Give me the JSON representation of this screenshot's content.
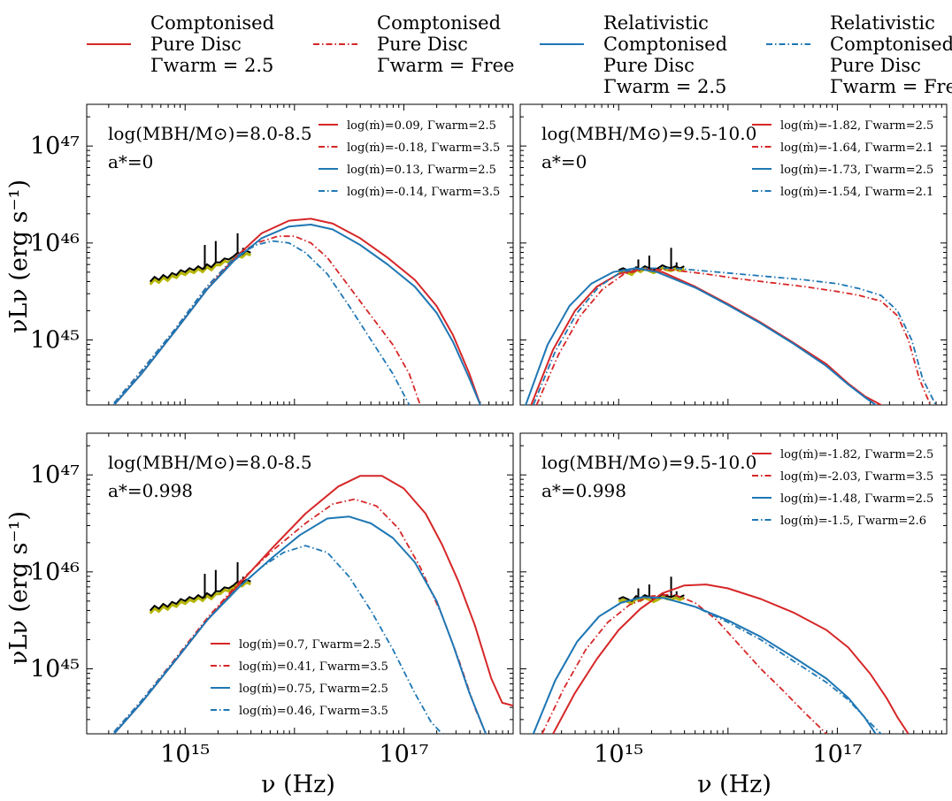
{
  "figure": {
    "xlabel": "ν (Hz)",
    "ylabel": "νLν (erg s⁻¹)",
    "x_tick_labels": [
      "10¹⁵",
      "10¹⁷"
    ],
    "y_tick_labels": [
      "10⁴⁷",
      "10⁴⁶",
      "10⁴⁵"
    ]
  },
  "legend": [
    {
      "lines": [
        "Comptonised",
        "Pure Disc",
        "Γwarm = 2.5"
      ],
      "color": "#d62728",
      "dash": "solid"
    },
    {
      "lines": [
        "Comptonised",
        "Pure Disc",
        "Γwarm = Free"
      ],
      "color": "#d62728",
      "dash": "dashdot"
    },
    {
      "lines": [
        "Relativistic",
        "Comptonised",
        "Pure Disc",
        "Γwarm = 2.5"
      ],
      "color": "#1f77b4",
      "dash": "solid"
    },
    {
      "lines": [
        "Relativistic",
        "Comptonised",
        "Pure Disc",
        "Γwarm = Free"
      ],
      "color": "#1f77b4",
      "dash": "dashdot"
    }
  ],
  "chart_data": [
    {
      "type": "line",
      "title": "log(MBH/M⊙)=8.0-8.5",
      "subtitle": "a*=0",
      "xscale": "log",
      "yscale": "log",
      "xlim": [
        14.1,
        18.0
      ],
      "ylim": [
        44.33,
        47.43
      ],
      "legend_position": "top-right",
      "legend_entries": [
        "log(ṁ)=0.09, Γwarm=2.5",
        "log(ṁ)=-0.18, Γwarm=3.5",
        "log(ṁ)=0.13, Γwarm=2.5",
        "log(ṁ)=-0.14, Γwarm=3.5"
      ],
      "series": [
        {
          "name": "log(ṁ)=0.09, Γwarm=2.5",
          "color": "#d62728",
          "dash": "solid",
          "log_nu": [
            14.35,
            14.6,
            14.9,
            15.2,
            15.45,
            15.7,
            15.95,
            16.15,
            16.35,
            16.6,
            16.85,
            17.1,
            17.3,
            17.45,
            17.6,
            17.7,
            17.85
          ],
          "log_L": [
            44.33,
            44.65,
            45.08,
            45.52,
            45.84,
            46.1,
            46.23,
            46.25,
            46.2,
            46.05,
            45.85,
            45.62,
            45.35,
            45.05,
            44.65,
            44.33,
            44.0
          ]
        },
        {
          "name": "log(ṁ)=-0.18, Γwarm=3.5",
          "color": "#d62728",
          "dash": "dashdot",
          "log_nu": [
            14.35,
            14.6,
            14.9,
            15.2,
            15.45,
            15.65,
            15.85,
            16.0,
            16.15,
            16.3,
            16.5,
            16.7,
            16.9,
            17.05,
            17.15,
            17.3
          ],
          "log_L": [
            44.35,
            44.68,
            45.1,
            45.55,
            45.85,
            46.0,
            46.07,
            46.07,
            46.0,
            45.85,
            45.55,
            45.25,
            44.95,
            44.65,
            44.33,
            44.0
          ]
        },
        {
          "name": "log(ṁ)=0.13, Γwarm=2.5",
          "color": "#1f77b4",
          "dash": "solid",
          "log_nu": [
            14.35,
            14.6,
            14.9,
            15.2,
            15.45,
            15.7,
            15.95,
            16.15,
            16.35,
            16.6,
            16.85,
            17.1,
            17.3,
            17.45,
            17.6,
            17.7,
            17.85
          ],
          "log_L": [
            44.33,
            44.65,
            45.08,
            45.52,
            45.82,
            46.05,
            46.17,
            46.19,
            46.14,
            45.98,
            45.78,
            45.55,
            45.28,
            44.98,
            44.6,
            44.33,
            44.0
          ]
        },
        {
          "name": "log(ṁ)=-0.14, Γwarm=3.5",
          "color": "#1f77b4",
          "dash": "dashdot",
          "log_nu": [
            14.35,
            14.6,
            14.9,
            15.2,
            15.45,
            15.65,
            15.8,
            15.95,
            16.1,
            16.3,
            16.5,
            16.7,
            16.9,
            17.05,
            17.2
          ],
          "log_L": [
            44.35,
            44.68,
            45.1,
            45.55,
            45.85,
            45.98,
            46.02,
            46.0,
            45.9,
            45.68,
            45.35,
            45.0,
            44.65,
            44.33,
            44.0
          ]
        }
      ]
    },
    {
      "type": "line",
      "title": "log(MBH/M⊙)=9.5-10.0",
      "subtitle": "a*=0",
      "xscale": "log",
      "yscale": "log",
      "xlim": [
        14.1,
        18.0
      ],
      "ylim": [
        44.33,
        47.43
      ],
      "legend_position": "top-right",
      "legend_entries": [
        "log(ṁ)=-1.82, Γwarm=2.5",
        "log(ṁ)=-1.64, Γwarm=2.1",
        "log(ṁ)=-1.73, Γwarm=2.5",
        "log(ṁ)=-1.54, Γwarm=2.1"
      ],
      "series": [
        {
          "name": "log(ṁ)=-1.82, Γwarm=2.5",
          "color": "#d62728",
          "dash": "solid",
          "log_nu": [
            14.2,
            14.4,
            14.6,
            14.8,
            15.0,
            15.2,
            15.4,
            15.7,
            16.0,
            16.3,
            16.6,
            16.9,
            17.1,
            17.25,
            17.4,
            17.5
          ],
          "log_L": [
            44.33,
            44.9,
            45.3,
            45.55,
            45.68,
            45.73,
            45.7,
            45.55,
            45.37,
            45.18,
            44.97,
            44.75,
            44.55,
            44.42,
            44.33,
            44.2
          ]
        },
        {
          "name": "log(ṁ)=-1.64, Γwarm=2.1",
          "color": "#d62728",
          "dash": "dashdot",
          "log_nu": [
            14.25,
            14.45,
            14.65,
            14.85,
            15.05,
            15.25,
            15.5,
            15.8,
            16.1,
            16.4,
            16.7,
            17.0,
            17.2,
            17.4,
            17.55,
            17.65,
            17.75,
            17.85
          ],
          "log_L": [
            44.33,
            44.85,
            45.25,
            45.52,
            45.68,
            45.73,
            45.72,
            45.68,
            45.63,
            45.59,
            45.55,
            45.5,
            45.46,
            45.4,
            45.25,
            45.0,
            44.6,
            44.33
          ]
        },
        {
          "name": "log(ṁ)=-1.73, Γwarm=2.5",
          "color": "#1f77b4",
          "dash": "solid",
          "log_nu": [
            14.15,
            14.35,
            14.55,
            14.75,
            14.95,
            15.15,
            15.35,
            15.7,
            16.0,
            16.3,
            16.6,
            16.9,
            17.1,
            17.25,
            17.35,
            17.45
          ],
          "log_L": [
            44.33,
            44.95,
            45.35,
            45.58,
            45.7,
            45.74,
            45.7,
            45.54,
            45.36,
            45.17,
            44.96,
            44.73,
            44.54,
            44.41,
            44.33,
            44.2
          ]
        },
        {
          "name": "log(ṁ)=-1.54, Γwarm=2.1",
          "color": "#1f77b4",
          "dash": "dashdot",
          "log_nu": [
            14.22,
            14.42,
            14.62,
            14.82,
            15.02,
            15.22,
            15.5,
            15.8,
            16.1,
            16.4,
            16.7,
            17.0,
            17.2,
            17.4,
            17.55,
            17.68,
            17.78,
            17.9
          ],
          "log_L": [
            44.33,
            44.88,
            45.28,
            45.55,
            45.7,
            45.74,
            45.74,
            45.71,
            45.68,
            45.65,
            45.62,
            45.58,
            45.53,
            45.46,
            45.3,
            45.0,
            44.6,
            44.33
          ]
        }
      ]
    },
    {
      "type": "line",
      "title": "log(MBH/M⊙)=8.0-8.5",
      "subtitle": "a*=0.998",
      "xscale": "log",
      "yscale": "log",
      "xlim": [
        14.1,
        18.0
      ],
      "ylim": [
        44.33,
        47.43
      ],
      "legend_position": "bottom-center",
      "legend_entries": [
        "log(ṁ)=0.7, Γwarm=2.5",
        "log(ṁ)=0.41, Γwarm=3.5",
        "log(ṁ)=0.75, Γwarm=2.5",
        "log(ṁ)=0.46, Γwarm=3.5"
      ],
      "series": [
        {
          "name": "log(ṁ)=0.7, Γwarm=2.5",
          "color": "#d62728",
          "dash": "solid",
          "log_nu": [
            14.35,
            14.6,
            14.9,
            15.2,
            15.5,
            15.8,
            16.1,
            16.4,
            16.6,
            16.8,
            17.0,
            17.2,
            17.35,
            17.5,
            17.65,
            17.8,
            17.9,
            18.0
          ],
          "log_L": [
            44.33,
            44.65,
            45.07,
            45.5,
            45.88,
            46.25,
            46.6,
            46.88,
            46.99,
            46.99,
            46.86,
            46.6,
            46.28,
            45.9,
            45.45,
            44.9,
            44.65,
            44.62
          ]
        },
        {
          "name": "log(ṁ)=0.41, Γwarm=3.5",
          "color": "#d62728",
          "dash": "dashdot",
          "log_nu": [
            14.35,
            14.6,
            14.9,
            15.2,
            15.5,
            15.8,
            16.1,
            16.35,
            16.55,
            16.75,
            16.95,
            17.15,
            17.35,
            17.5,
            17.65,
            17.75
          ],
          "log_L": [
            44.35,
            44.67,
            45.09,
            45.52,
            45.9,
            46.22,
            46.5,
            46.7,
            46.75,
            46.68,
            46.45,
            46.05,
            45.55,
            45.1,
            44.6,
            44.33
          ]
        },
        {
          "name": "log(ṁ)=0.75, Γwarm=2.5",
          "color": "#1f77b4",
          "dash": "solid",
          "log_nu": [
            14.35,
            14.6,
            14.9,
            15.2,
            15.5,
            15.8,
            16.05,
            16.3,
            16.5,
            16.7,
            16.9,
            17.1,
            17.3,
            17.45,
            17.6,
            17.75
          ],
          "log_L": [
            44.33,
            44.65,
            45.07,
            45.5,
            45.85,
            46.15,
            46.38,
            46.55,
            46.57,
            46.5,
            46.35,
            46.1,
            45.7,
            45.25,
            44.75,
            44.33
          ]
        },
        {
          "name": "log(ṁ)=0.46, Γwarm=3.5",
          "color": "#1f77b4",
          "dash": "dashdot",
          "log_nu": [
            14.35,
            14.6,
            14.9,
            15.2,
            15.45,
            15.7,
            15.9,
            16.1,
            16.3,
            16.5,
            16.7,
            16.9,
            17.1,
            17.25,
            17.35
          ],
          "log_L": [
            44.35,
            44.67,
            45.08,
            45.5,
            45.8,
            46.05,
            46.2,
            46.27,
            46.2,
            45.95,
            45.6,
            45.2,
            44.75,
            44.45,
            44.33
          ]
        }
      ]
    },
    {
      "type": "line",
      "title": "log(MBH/M⊙)=9.5-10.0",
      "subtitle": "a*=0.998",
      "xscale": "log",
      "yscale": "log",
      "xlim": [
        14.1,
        18.0
      ],
      "ylim": [
        44.33,
        47.43
      ],
      "legend_position": "top-right",
      "legend_entries": [
        "log(ṁ)=-1.82, Γwarm=2.5",
        "log(ṁ)=-2.03, Γwarm=3.5",
        "log(ṁ)=-1.48, Γwarm=2.5",
        "log(ṁ)=-1.5, Γwarm=2.6"
      ],
      "series": [
        {
          "name": "log(ṁ)=-1.82, Γwarm=2.5",
          "color": "#d62728",
          "dash": "solid",
          "log_nu": [
            14.4,
            14.6,
            14.8,
            15.0,
            15.2,
            15.4,
            15.6,
            15.8,
            16.0,
            16.3,
            16.6,
            16.9,
            17.1,
            17.3,
            17.45,
            17.55,
            17.65
          ],
          "log_L": [
            44.33,
            44.75,
            45.1,
            45.4,
            45.62,
            45.78,
            45.86,
            45.87,
            45.83,
            45.72,
            45.58,
            45.4,
            45.22,
            44.95,
            44.7,
            44.5,
            44.33
          ]
        },
        {
          "name": "log(ṁ)=-2.03, Γwarm=3.5",
          "color": "#d62728",
          "dash": "dashdot",
          "log_nu": [
            14.3,
            14.5,
            14.7,
            14.9,
            15.1,
            15.3,
            15.5,
            15.7,
            15.9,
            16.1,
            16.3,
            16.5,
            16.7,
            16.9,
            17.0
          ],
          "log_L": [
            44.33,
            44.8,
            45.2,
            45.48,
            45.66,
            45.75,
            45.77,
            45.68,
            45.5,
            45.25,
            45.0,
            44.78,
            44.55,
            44.33,
            44.2
          ]
        },
        {
          "name": "log(ṁ)=-1.48, Γwarm=2.5",
          "color": "#1f77b4",
          "dash": "solid",
          "log_nu": [
            14.22,
            14.42,
            14.62,
            14.82,
            15.02,
            15.22,
            15.42,
            15.7,
            16.0,
            16.3,
            16.6,
            16.9,
            17.1,
            17.25,
            17.35,
            17.45
          ],
          "log_L": [
            44.33,
            44.88,
            45.28,
            45.54,
            45.68,
            45.74,
            45.73,
            45.64,
            45.5,
            45.33,
            45.12,
            44.9,
            44.7,
            44.5,
            44.33,
            44.2
          ]
        },
        {
          "name": "log(ṁ)=-1.5, Γwarm=2.6",
          "color": "#1f77b4",
          "dash": "dashdot",
          "log_nu": [
            14.22,
            14.42,
            14.62,
            14.82,
            15.02,
            15.22,
            15.42,
            15.7,
            16.0,
            16.3,
            16.6,
            16.9,
            17.1,
            17.25,
            17.4,
            17.5
          ],
          "log_L": [
            44.33,
            44.88,
            45.28,
            45.54,
            45.68,
            45.74,
            45.73,
            45.64,
            45.48,
            45.3,
            45.08,
            44.86,
            44.68,
            44.5,
            44.33,
            44.2
          ]
        }
      ]
    }
  ],
  "observed_spectrum": {
    "color": "#000000",
    "ref_color": "#b5b500",
    "panels": [
      {
        "log_nu": [
          14.68,
          14.72,
          14.76,
          14.8,
          14.84,
          14.88,
          14.92,
          14.96,
          15.0,
          15.04,
          15.08,
          15.12,
          15.16,
          15.2,
          15.24,
          15.28,
          15.32,
          15.36,
          15.4,
          15.44,
          15.48,
          15.52,
          15.56,
          15.6
        ],
        "log_L": [
          45.6,
          45.65,
          45.62,
          45.67,
          45.64,
          45.69,
          45.67,
          45.72,
          45.7,
          45.74,
          45.72,
          45.76,
          45.73,
          45.78,
          45.75,
          45.8,
          45.8,
          45.84,
          45.83,
          45.86,
          45.9,
          45.88,
          45.92,
          45.9
        ]
      },
      {
        "log_nu": [
          15.0,
          15.04,
          15.08,
          15.12,
          15.16,
          15.2,
          15.24,
          15.28,
          15.32,
          15.36,
          15.4,
          15.44,
          15.48,
          15.52,
          15.56,
          15.6
        ],
        "log_L": [
          45.72,
          45.74,
          45.72,
          45.7,
          45.75,
          45.73,
          45.76,
          45.74,
          45.72,
          45.74,
          45.77,
          45.75,
          45.74,
          45.76,
          45.74,
          45.76
        ]
      },
      {
        "log_nu": [
          14.68,
          14.72,
          14.76,
          14.8,
          14.84,
          14.88,
          14.92,
          14.96,
          15.0,
          15.04,
          15.08,
          15.12,
          15.16,
          15.2,
          15.24,
          15.28,
          15.32,
          15.36,
          15.4,
          15.44,
          15.48,
          15.52,
          15.56,
          15.6
        ],
        "log_L": [
          45.6,
          45.65,
          45.62,
          45.67,
          45.64,
          45.69,
          45.67,
          45.72,
          45.7,
          45.74,
          45.72,
          45.76,
          45.73,
          45.78,
          45.75,
          45.8,
          45.8,
          45.84,
          45.83,
          45.86,
          45.9,
          45.88,
          45.92,
          45.9
        ]
      },
      {
        "log_nu": [
          15.0,
          15.04,
          15.08,
          15.12,
          15.16,
          15.2,
          15.24,
          15.28,
          15.32,
          15.36,
          15.4,
          15.44,
          15.48,
          15.52,
          15.56,
          15.6
        ],
        "log_L": [
          45.72,
          45.74,
          45.72,
          45.7,
          45.75,
          45.73,
          45.76,
          45.74,
          45.72,
          45.74,
          45.77,
          45.75,
          45.74,
          45.76,
          45.74,
          45.76
        ]
      }
    ],
    "peaks_log_nu": [
      15.18,
      15.28,
      15.48,
      15.53
    ],
    "peaks_log_L": [
      45.98,
      46.02,
      46.1,
      45.95
    ]
  }
}
